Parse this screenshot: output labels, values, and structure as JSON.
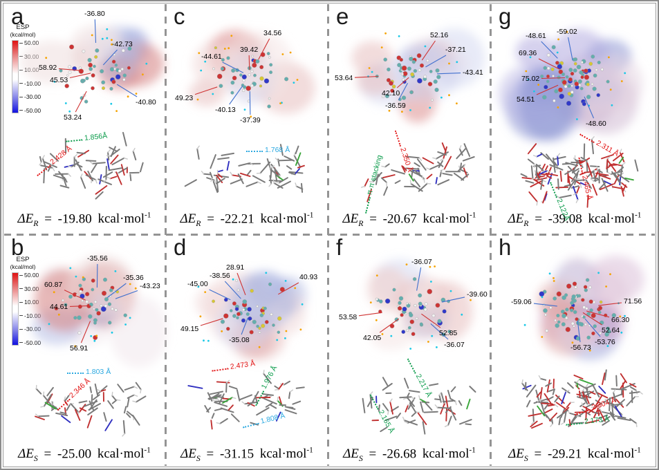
{
  "colorbar": {
    "title": "ESP",
    "subtitle": "(kcal/mol)",
    "ticks": [
      "50.00",
      "30.00",
      "10.00",
      "-10.00",
      "-30.00",
      "-50.00"
    ]
  },
  "colors": {
    "positive_leader_red": "#cf3333",
    "negative_leader_blue": "#3f6fce",
    "distance_green": "#0a9b4a",
    "distance_red": "#e21111",
    "distance_cyan": "#2aa8e0",
    "colorbar_top_red": "#e01212",
    "colorbar_bottom_blue": "#1212e0",
    "divider_gray": "#949494"
  },
  "panels": [
    {
      "letter": "a",
      "esp_labels": [
        {
          "text": "-36.80",
          "sign": "neg"
        },
        {
          "text": "-42.73",
          "sign": "neg"
        },
        {
          "text": "58.92",
          "sign": "pos"
        },
        {
          "text": "45.53",
          "sign": "pos"
        },
        {
          "text": "-40.80",
          "sign": "neg"
        },
        {
          "text": "53.24",
          "sign": "pos"
        }
      ],
      "distance_labels": [
        {
          "text": "1.856Å",
          "color": "green"
        },
        {
          "text": "2.428 Å",
          "color": "red"
        }
      ],
      "energy": {
        "lhs": "ΔE",
        "sub": "R",
        "eq": "=",
        "value": "-19.80",
        "unit": "kcal·mol",
        "exp": "-1"
      }
    },
    {
      "letter": "b",
      "esp_labels": [
        {
          "text": "-35.56",
          "sign": "neg"
        },
        {
          "text": "60.87",
          "sign": "pos"
        },
        {
          "text": "-35.36",
          "sign": "neg"
        },
        {
          "text": "-43.23",
          "sign": "neg"
        },
        {
          "text": "44.61",
          "sign": "pos"
        },
        {
          "text": "56.91",
          "sign": "pos"
        }
      ],
      "distance_labels": [
        {
          "text": "1.803 Å",
          "color": "cyan"
        },
        {
          "text": "2.346 Å",
          "color": "red"
        }
      ],
      "energy": {
        "lhs": "ΔE",
        "sub": "S",
        "eq": "=",
        "value": "-25.00",
        "unit": "kcal·mol",
        "exp": "-1"
      }
    },
    {
      "letter": "c",
      "esp_labels": [
        {
          "text": "34.56",
          "sign": "pos"
        },
        {
          "text": "39.42",
          "sign": "pos"
        },
        {
          "text": "-44.61",
          "sign": "neg"
        },
        {
          "text": "49.23",
          "sign": "pos"
        },
        {
          "text": "-40.13",
          "sign": "neg"
        },
        {
          "text": "-37.39",
          "sign": "neg"
        }
      ],
      "distance_labels": [
        {
          "text": "1.768 Å",
          "color": "cyan"
        }
      ],
      "energy": {
        "lhs": "ΔE",
        "sub": "R",
        "eq": "=",
        "value": "-22.21",
        "unit": "kcal·mol",
        "exp": "-1"
      }
    },
    {
      "letter": "d",
      "esp_labels": [
        {
          "text": "28.91",
          "sign": "pos"
        },
        {
          "text": "-38.56",
          "sign": "neg"
        },
        {
          "text": "-45.00",
          "sign": "neg"
        },
        {
          "text": "40.93",
          "sign": "pos"
        },
        {
          "text": "49.15",
          "sign": "pos"
        },
        {
          "text": "-35.08",
          "sign": "neg"
        }
      ],
      "distance_labels": [
        {
          "text": "2.473 Å",
          "color": "red"
        },
        {
          "text": "1.976 Å",
          "color": "green"
        },
        {
          "text": "1.808 Å",
          "color": "cyan"
        }
      ],
      "energy": {
        "lhs": "ΔE",
        "sub": "S",
        "eq": "=",
        "value": "-31.15",
        "unit": "kcal·mol",
        "exp": "-1"
      }
    },
    {
      "letter": "e",
      "esp_labels": [
        {
          "text": "52.16",
          "sign": "pos"
        },
        {
          "text": "-37.21",
          "sign": "neg"
        },
        {
          "text": "53.64",
          "sign": "pos"
        },
        {
          "text": "-43.41",
          "sign": "neg"
        },
        {
          "text": "42.10",
          "sign": "pos"
        },
        {
          "text": "-36.59",
          "sign": "neg"
        }
      ],
      "distance_labels": [
        {
          "text": "2.350 Å",
          "color": "red"
        },
        {
          "text": "π-π stacking",
          "color": "green"
        }
      ],
      "energy": {
        "lhs": "ΔE",
        "sub": "R",
        "eq": "=",
        "value": "-20.67",
        "unit": "kcal·mol",
        "exp": "-1"
      }
    },
    {
      "letter": "f",
      "esp_labels": [
        {
          "text": "-36.07",
          "sign": "neg"
        },
        {
          "text": "-39.60",
          "sign": "neg"
        },
        {
          "text": "53.58",
          "sign": "pos"
        },
        {
          "text": "52.85",
          "sign": "pos"
        },
        {
          "text": "42.05",
          "sign": "pos"
        },
        {
          "text": "-36.07",
          "sign": "neg"
        }
      ],
      "distance_labels": [
        {
          "text": "2.217 Å",
          "color": "green"
        },
        {
          "text": "2.165 Å",
          "color": "green"
        }
      ],
      "energy": {
        "lhs": "ΔE",
        "sub": "S",
        "eq": "=",
        "value": "-26.68",
        "unit": "kcal·mol",
        "exp": "-1"
      }
    },
    {
      "letter": "g",
      "esp_labels": [
        {
          "text": "-48.61",
          "sign": "neg"
        },
        {
          "text": "-59.02",
          "sign": "neg"
        },
        {
          "text": "69.36",
          "sign": "pos"
        },
        {
          "text": "75.02",
          "sign": "pos"
        },
        {
          "text": "54.51",
          "sign": "pos"
        },
        {
          "text": "-48.60",
          "sign": "neg"
        }
      ],
      "distance_labels": [
        {
          "text": "2.311 Å",
          "color": "red"
        },
        {
          "text": "2.465 Å",
          "color": "red"
        },
        {
          "text": "2.122Å",
          "color": "green"
        }
      ],
      "energy": {
        "lhs": "ΔE",
        "sub": "R",
        "eq": "=",
        "value": "-39.08",
        "unit": "kcal·mol",
        "exp": "-1"
      }
    },
    {
      "letter": "h",
      "esp_labels": [
        {
          "text": "-59.06",
          "sign": "neg"
        },
        {
          "text": "71.56",
          "sign": "pos"
        },
        {
          "text": "66.30",
          "sign": "pos"
        },
        {
          "text": "52.64",
          "sign": "pos"
        },
        {
          "text": "-53.76",
          "sign": "neg"
        },
        {
          "text": "-56.73",
          "sign": "neg"
        }
      ],
      "distance_labels": [
        {
          "text": "2.304 Å",
          "color": "red"
        },
        {
          "text": "2.173 Å",
          "color": "green"
        }
      ],
      "energy": {
        "lhs": "ΔE",
        "sub": "S",
        "eq": "=",
        "value": "-29.21",
        "unit": "kcal·mol",
        "exp": "-1"
      }
    }
  ]
}
